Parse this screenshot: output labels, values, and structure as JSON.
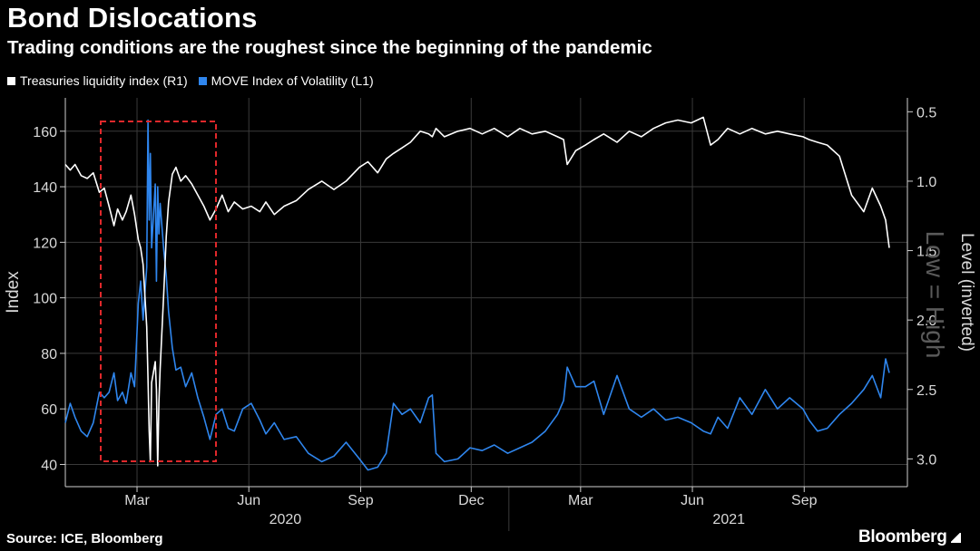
{
  "title": "Bond Dislocations",
  "subtitle": "Trading conditions are the roughest since the beginning of the pandemic",
  "legend": [
    {
      "label": "Treasuries liquidity index (R1)",
      "color": "#ffffff"
    },
    {
      "label": "MOVE Index of Volatility (L1)",
      "color": "#2f86ee"
    }
  ],
  "source": "Source: ICE, Bloomberg",
  "brand": "Bloomberg",
  "colors": {
    "background": "#000000",
    "grid": "#3a3a3a",
    "highlight_box": "#e0282b"
  },
  "chart_data": {
    "type": "line",
    "title": "Bond Dislocations",
    "left_axis": {
      "label": "Index",
      "range": [
        32,
        172
      ],
      "ticks": [
        40,
        60,
        80,
        100,
        120,
        140,
        160
      ]
    },
    "right_axis": {
      "label": "Level (inverted)",
      "range": [
        3.2,
        0.4
      ],
      "inverted": true,
      "ticks": [
        "0.5",
        "1.0",
        "1.5",
        "2.0",
        "2.5",
        "3.0"
      ]
    },
    "x_axis": {
      "month_ticks": [
        "Mar",
        "Jun",
        "Sep",
        "Dec",
        "Mar",
        "Jun",
        "Sep"
      ],
      "year_labels": [
        "2020",
        "2021"
      ],
      "start": "2020-01-02",
      "end": "2021-11-10"
    },
    "annotation": "Low = High",
    "highlight_period": {
      "from": "2020-02-10",
      "to": "2020-04-30"
    },
    "series": [
      {
        "name": "MOVE Index of Volatility (L1)",
        "axis": "left",
        "points": [
          [
            "2020-01-02",
            55
          ],
          [
            "2020-01-06",
            62
          ],
          [
            "2020-01-10",
            57
          ],
          [
            "2020-01-15",
            52
          ],
          [
            "2020-01-20",
            50
          ],
          [
            "2020-01-25",
            55
          ],
          [
            "2020-01-30",
            66
          ],
          [
            "2020-02-03",
            64
          ],
          [
            "2020-02-07",
            66
          ],
          [
            "2020-02-11",
            73
          ],
          [
            "2020-02-14",
            63
          ],
          [
            "2020-02-18",
            66
          ],
          [
            "2020-02-21",
            62
          ],
          [
            "2020-02-25",
            73
          ],
          [
            "2020-02-28",
            68
          ],
          [
            "2020-03-02",
            98
          ],
          [
            "2020-03-04",
            106
          ],
          [
            "2020-03-06",
            92
          ],
          [
            "2020-03-09",
            111
          ],
          [
            "2020-03-10",
            164
          ],
          [
            "2020-03-11",
            128
          ],
          [
            "2020-03-12",
            152
          ],
          [
            "2020-03-13",
            118
          ],
          [
            "2020-03-16",
            141
          ],
          [
            "2020-03-17",
            106
          ],
          [
            "2020-03-18",
            140
          ],
          [
            "2020-03-19",
            123
          ],
          [
            "2020-03-20",
            134
          ],
          [
            "2020-03-23",
            117
          ],
          [
            "2020-03-25",
            108
          ],
          [
            "2020-03-27",
            95
          ],
          [
            "2020-03-30",
            82
          ],
          [
            "2020-04-02",
            74
          ],
          [
            "2020-04-06",
            75
          ],
          [
            "2020-04-10",
            68
          ],
          [
            "2020-04-15",
            73
          ],
          [
            "2020-04-20",
            64
          ],
          [
            "2020-04-25",
            57
          ],
          [
            "2020-04-30",
            49
          ],
          [
            "2020-05-05",
            58
          ],
          [
            "2020-05-10",
            60
          ],
          [
            "2020-05-15",
            53
          ],
          [
            "2020-05-20",
            52
          ],
          [
            "2020-05-27",
            60
          ],
          [
            "2020-06-03",
            62
          ],
          [
            "2020-06-10",
            56
          ],
          [
            "2020-06-15",
            51
          ],
          [
            "2020-06-22",
            55
          ],
          [
            "2020-06-30",
            49
          ],
          [
            "2020-07-10",
            50
          ],
          [
            "2020-07-20",
            44
          ],
          [
            "2020-07-31",
            41
          ],
          [
            "2020-08-10",
            43
          ],
          [
            "2020-08-20",
            48
          ],
          [
            "2020-08-31",
            42
          ],
          [
            "2020-09-07",
            38
          ],
          [
            "2020-09-15",
            39
          ],
          [
            "2020-09-22",
            44
          ],
          [
            "2020-09-28",
            62
          ],
          [
            "2020-10-05",
            58
          ],
          [
            "2020-10-12",
            60
          ],
          [
            "2020-10-20",
            55
          ],
          [
            "2020-10-27",
            64
          ],
          [
            "2020-10-30",
            65
          ],
          [
            "2020-11-02",
            44
          ],
          [
            "2020-11-09",
            41
          ],
          [
            "2020-11-20",
            42
          ],
          [
            "2020-11-30",
            46
          ],
          [
            "2020-12-10",
            45
          ],
          [
            "2020-12-20",
            47
          ],
          [
            "2020-12-31",
            44
          ],
          [
            "2021-01-10",
            46
          ],
          [
            "2021-01-20",
            48
          ],
          [
            "2021-01-31",
            52
          ],
          [
            "2021-02-10",
            58
          ],
          [
            "2021-02-15",
            63
          ],
          [
            "2021-02-18",
            75
          ],
          [
            "2021-02-25",
            68
          ],
          [
            "2021-03-05",
            68
          ],
          [
            "2021-03-12",
            70
          ],
          [
            "2021-03-20",
            58
          ],
          [
            "2021-03-31",
            72
          ],
          [
            "2021-04-10",
            60
          ],
          [
            "2021-04-20",
            57
          ],
          [
            "2021-04-30",
            60
          ],
          [
            "2021-05-10",
            56
          ],
          [
            "2021-05-20",
            57
          ],
          [
            "2021-05-31",
            55
          ],
          [
            "2021-06-10",
            52
          ],
          [
            "2021-06-16",
            51
          ],
          [
            "2021-06-22",
            57
          ],
          [
            "2021-06-30",
            53
          ],
          [
            "2021-07-10",
            64
          ],
          [
            "2021-07-20",
            58
          ],
          [
            "2021-07-31",
            67
          ],
          [
            "2021-08-10",
            60
          ],
          [
            "2021-08-20",
            64
          ],
          [
            "2021-08-31",
            60
          ],
          [
            "2021-09-05",
            56
          ],
          [
            "2021-09-12",
            52
          ],
          [
            "2021-09-20",
            53
          ],
          [
            "2021-09-30",
            58
          ],
          [
            "2021-10-10",
            62
          ],
          [
            "2021-10-20",
            67
          ],
          [
            "2021-10-27",
            72
          ],
          [
            "2021-11-03",
            64
          ],
          [
            "2021-11-07",
            78
          ],
          [
            "2021-11-10",
            73
          ]
        ]
      },
      {
        "name": "Treasuries liquidity index (R1)",
        "axis": "right",
        "points": [
          [
            "2020-01-02",
            0.88
          ],
          [
            "2020-01-06",
            0.92
          ],
          [
            "2020-01-10",
            0.88
          ],
          [
            "2020-01-15",
            0.96
          ],
          [
            "2020-01-20",
            0.98
          ],
          [
            "2020-01-25",
            0.94
          ],
          [
            "2020-01-30",
            1.08
          ],
          [
            "2020-02-03",
            1.05
          ],
          [
            "2020-02-07",
            1.18
          ],
          [
            "2020-02-11",
            1.32
          ],
          [
            "2020-02-14",
            1.2
          ],
          [
            "2020-02-18",
            1.28
          ],
          [
            "2020-02-21",
            1.22
          ],
          [
            "2020-02-25",
            1.1
          ],
          [
            "2020-02-28",
            1.24
          ],
          [
            "2020-03-02",
            1.42
          ],
          [
            "2020-03-04",
            1.48
          ],
          [
            "2020-03-06",
            1.6
          ],
          [
            "2020-03-09",
            2.05
          ],
          [
            "2020-03-10",
            2.42
          ],
          [
            "2020-03-11",
            2.8
          ],
          [
            "2020-03-12",
            3.02
          ],
          [
            "2020-03-13",
            2.45
          ],
          [
            "2020-03-16",
            2.3
          ],
          [
            "2020-03-17",
            2.5
          ],
          [
            "2020-03-18",
            3.05
          ],
          [
            "2020-03-19",
            2.6
          ],
          [
            "2020-03-20",
            2.35
          ],
          [
            "2020-03-23",
            1.8
          ],
          [
            "2020-03-25",
            1.4
          ],
          [
            "2020-03-27",
            1.15
          ],
          [
            "2020-03-30",
            0.95
          ],
          [
            "2020-04-02",
            0.9
          ],
          [
            "2020-04-06",
            1.0
          ],
          [
            "2020-04-10",
            0.96
          ],
          [
            "2020-04-15",
            1.02
          ],
          [
            "2020-04-20",
            1.1
          ],
          [
            "2020-04-25",
            1.18
          ],
          [
            "2020-04-30",
            1.28
          ],
          [
            "2020-05-05",
            1.2
          ],
          [
            "2020-05-10",
            1.1
          ],
          [
            "2020-05-15",
            1.22
          ],
          [
            "2020-05-20",
            1.15
          ],
          [
            "2020-05-27",
            1.2
          ],
          [
            "2020-06-03",
            1.18
          ],
          [
            "2020-06-10",
            1.22
          ],
          [
            "2020-06-15",
            1.15
          ],
          [
            "2020-06-22",
            1.24
          ],
          [
            "2020-06-30",
            1.18
          ],
          [
            "2020-07-10",
            1.14
          ],
          [
            "2020-07-20",
            1.06
          ],
          [
            "2020-07-31",
            1.0
          ],
          [
            "2020-08-10",
            1.06
          ],
          [
            "2020-08-20",
            1.0
          ],
          [
            "2020-08-31",
            0.9
          ],
          [
            "2020-09-07",
            0.86
          ],
          [
            "2020-09-15",
            0.94
          ],
          [
            "2020-09-22",
            0.84
          ],
          [
            "2020-09-28",
            0.8
          ],
          [
            "2020-10-05",
            0.76
          ],
          [
            "2020-10-12",
            0.72
          ],
          [
            "2020-10-20",
            0.64
          ],
          [
            "2020-10-27",
            0.66
          ],
          [
            "2020-10-30",
            0.68
          ],
          [
            "2020-11-02",
            0.62
          ],
          [
            "2020-11-09",
            0.68
          ],
          [
            "2020-11-20",
            0.64
          ],
          [
            "2020-11-30",
            0.62
          ],
          [
            "2020-12-10",
            0.66
          ],
          [
            "2020-12-20",
            0.62
          ],
          [
            "2020-12-31",
            0.68
          ],
          [
            "2021-01-10",
            0.62
          ],
          [
            "2021-01-20",
            0.66
          ],
          [
            "2021-01-31",
            0.64
          ],
          [
            "2021-02-10",
            0.68
          ],
          [
            "2021-02-15",
            0.7
          ],
          [
            "2021-02-18",
            0.88
          ],
          [
            "2021-02-25",
            0.78
          ],
          [
            "2021-03-05",
            0.74
          ],
          [
            "2021-03-12",
            0.7
          ],
          [
            "2021-03-20",
            0.66
          ],
          [
            "2021-03-31",
            0.72
          ],
          [
            "2021-04-10",
            0.64
          ],
          [
            "2021-04-20",
            0.68
          ],
          [
            "2021-04-30",
            0.62
          ],
          [
            "2021-05-10",
            0.58
          ],
          [
            "2021-05-20",
            0.56
          ],
          [
            "2021-05-31",
            0.58
          ],
          [
            "2021-06-10",
            0.54
          ],
          [
            "2021-06-16",
            0.74
          ],
          [
            "2021-06-22",
            0.7
          ],
          [
            "2021-06-30",
            0.62
          ],
          [
            "2021-07-10",
            0.66
          ],
          [
            "2021-07-20",
            0.62
          ],
          [
            "2021-07-31",
            0.66
          ],
          [
            "2021-08-10",
            0.64
          ],
          [
            "2021-08-20",
            0.66
          ],
          [
            "2021-08-31",
            0.68
          ],
          [
            "2021-09-05",
            0.7
          ],
          [
            "2021-09-12",
            0.72
          ],
          [
            "2021-09-20",
            0.74
          ],
          [
            "2021-09-30",
            0.82
          ],
          [
            "2021-10-10",
            1.1
          ],
          [
            "2021-10-20",
            1.22
          ],
          [
            "2021-10-27",
            1.05
          ],
          [
            "2021-11-03",
            1.18
          ],
          [
            "2021-11-07",
            1.28
          ],
          [
            "2021-11-10",
            1.48
          ]
        ]
      }
    ]
  }
}
